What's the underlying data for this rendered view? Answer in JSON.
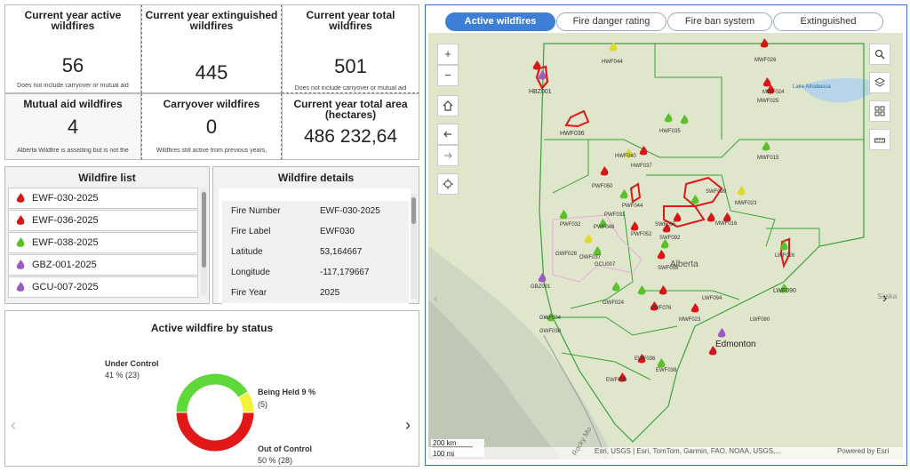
{
  "stats": {
    "active": {
      "title": "Current year active wildfires",
      "value": "56",
      "note": "Does not include carryover or mutual aid"
    },
    "extinguished": {
      "title": "Current year extinguished wildfires",
      "value": "445"
    },
    "total": {
      "title": "Current year total wildfires",
      "value": "501",
      "note": "Does not include carryover or mutual aid"
    },
    "mutual": {
      "title": "Mutual aid wildfires",
      "value": "4",
      "note": "Alberta Wildfire is assisting but is not the"
    },
    "carryover": {
      "title": "Carryover wildfires",
      "value": "0",
      "note": "Wildfires still active from previous years,"
    },
    "area": {
      "title": "Current year total area (hectares)",
      "value": "486 232,64"
    }
  },
  "wildfire_list": {
    "title": "Wildfire list",
    "items": [
      {
        "label": "EWF-030-2025",
        "color": "#d81818"
      },
      {
        "label": "EWF-036-2025",
        "color": "#d81818"
      },
      {
        "label": "EWF-038-2025",
        "color": "#5cc02a"
      },
      {
        "label": "GBZ-001-2025",
        "color": "#9a5cc0"
      },
      {
        "label": "GCU-007-2025",
        "color": "#9a5cc0"
      }
    ]
  },
  "details": {
    "title": "Wildfire details",
    "rows": [
      {
        "k": "Fire Number",
        "v": "EWF-030-2025"
      },
      {
        "k": "Fire Label",
        "v": "EWF030"
      },
      {
        "k": "Latitude",
        "v": "53,164667"
      },
      {
        "k": "Longitude",
        "v": "-117,179667"
      },
      {
        "k": "Fire Year",
        "v": "2025"
      }
    ]
  },
  "status_chart": {
    "title": "Active wildfire by status",
    "label_under": "Under Control",
    "label_under_val": "41 % (23)",
    "label_held": "Being Held 9 %",
    "label_held_val": "(5)",
    "label_out": "Out of Control",
    "label_out_val": "50 % (28)",
    "colors": {
      "under": "#5fd93a",
      "held": "#f2f23a",
      "out": "#e01818"
    }
  },
  "chart_data": {
    "type": "pie",
    "title": "Active wildfire by status",
    "categories": [
      "Under Control",
      "Being Held",
      "Out of Control"
    ],
    "values": [
      23,
      5,
      28
    ],
    "percent": [
      41,
      9,
      50
    ]
  },
  "tabs": [
    {
      "label": "Active wildfires"
    },
    {
      "label": "Fire danger rating"
    },
    {
      "label": "Fire ban system"
    },
    {
      "label": "Extinguished"
    }
  ],
  "map": {
    "zoom_in": "+",
    "zoom_out": "−",
    "scale_km": "200 km",
    "scale_mi": "100 mi",
    "attribution": "Esri, USGS | Esri, TomTom, Garmin, FAO, NOAA, USGS,...",
    "powered": "Powered by Esri",
    "labels": {
      "hwf044": "HWF044",
      "hbz001": "HBZ001",
      "mwf026": "MWF026",
      "mwf024": "MWF024",
      "mwf025": "MWF025",
      "hwf036": "HWF036",
      "hwf035": "HWF035",
      "hwf040": "HWF040",
      "hwf037": "HWF037",
      "mwf015": "MWF015",
      "pwf050": "PWF050",
      "pwf044": "PWF044",
      "pwf031": "PWF031",
      "pwf046": "PWF046",
      "pwf052": "PWF052",
      "pwf032": "PWF032",
      "gwf028": "GWF028",
      "owf037": "OWF037",
      "gcu007": "GCU007",
      "gbz001": "GBZ001",
      "swf092": "SWF092",
      "swf095": "SWF095",
      "swf099": "SWF099",
      "mwf016": "MWF016",
      "mwf023": "MWF023",
      "lwf026": "LWF026",
      "lwf090": "LWF090",
      "swf055": "SWF055",
      "lwf094": "LWF094",
      "swf076": "SWF076",
      "gwf034": "GWF034",
      "gwf024": "GWF024",
      "gwf038": "GWF038",
      "lwf080": "LWF080",
      "mwf023b": "MWF023",
      "ewf036": "EWF036",
      "ewf038": "EWF038",
      "ewf030": "EWF030",
      "alberta": "Alberta",
      "edmonton": "Edmonton",
      "lake": "Lake Athabasca",
      "rocky": "Rocky Mo",
      "saska": "Saska"
    }
  }
}
